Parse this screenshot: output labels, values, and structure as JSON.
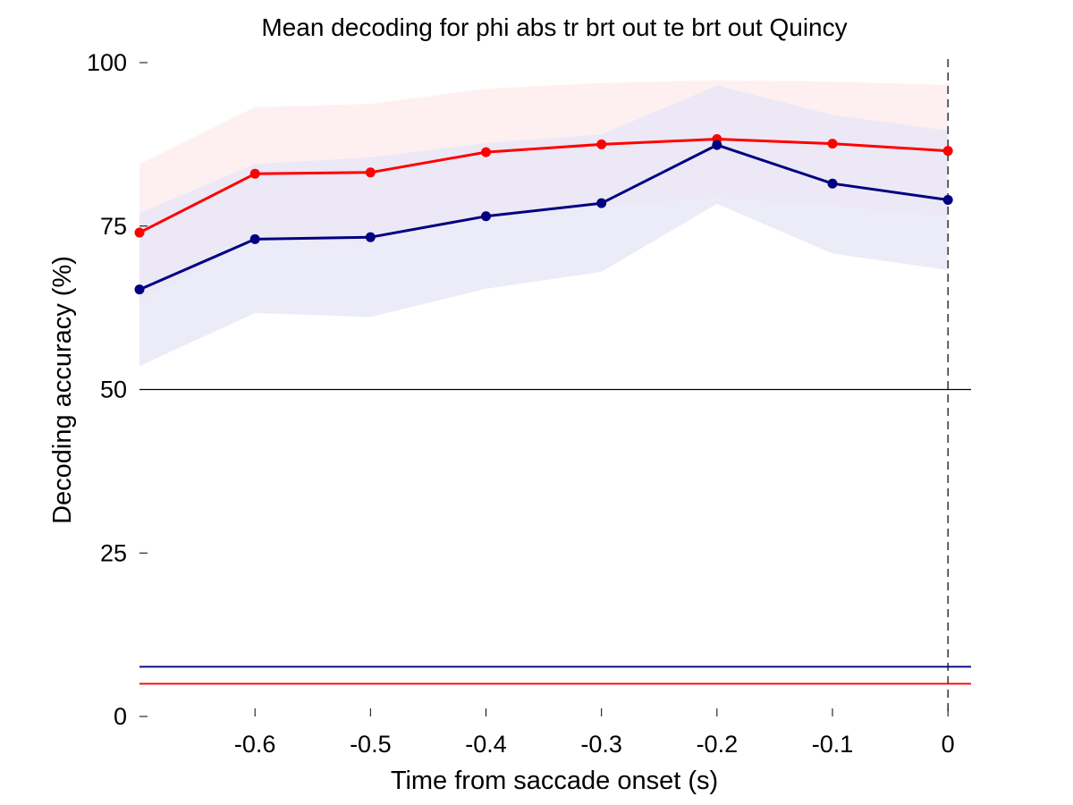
{
  "chart_data": {
    "type": "line",
    "title": "Mean decoding for phi abs tr brt out te brt out  Quincy",
    "xlabel": "Time from saccade onset (s)",
    "ylabel": "Decoding accuracy (%)",
    "xlim": [
      -0.7,
      0.02
    ],
    "ylim": [
      0,
      100
    ],
    "x_ticks": [
      -0.6,
      -0.5,
      -0.4,
      -0.3,
      -0.2,
      -0.1,
      0
    ],
    "x_tick_labels": [
      "-0.6",
      "-0.5",
      "-0.4",
      "-0.3",
      "-0.2",
      "-0.1",
      "0"
    ],
    "y_ticks": [
      0,
      25,
      50,
      75,
      100
    ],
    "y_tick_labels": [
      "0",
      "25",
      "50",
      "75",
      "100"
    ],
    "x": [
      -0.7,
      -0.6,
      -0.5,
      -0.4,
      -0.3,
      -0.2,
      -0.1,
      0
    ],
    "series": [
      {
        "color": "#ff0000",
        "band_color": "#fdebec",
        "values": [
          74,
          83,
          83.2,
          86.3,
          87.5,
          88.3,
          87.6,
          86.5
        ],
        "band_upper": [
          84.5,
          93.2,
          93.7,
          96,
          96.9,
          97.3,
          97.1,
          96.6
        ],
        "band_lower": [
          63.5,
          72.8,
          72.7,
          76.6,
          78.1,
          79.3,
          78.1,
          76.4
        ],
        "threshold": 5
      },
      {
        "color": "#000080",
        "band_color": "#e6e6f5",
        "values": [
          65.3,
          73,
          73.3,
          76.5,
          78.5,
          87.4,
          81.5,
          79
        ],
        "band_upper": [
          77,
          84.5,
          85.5,
          87.7,
          89,
          96.5,
          92,
          89.6
        ],
        "band_lower": [
          53.6,
          61.7,
          61.1,
          65.4,
          68,
          78.4,
          70.8,
          68.3
        ],
        "threshold": 7.6
      }
    ],
    "reference_lines": {
      "chance_y": 50,
      "event_x": 0
    },
    "grid": false,
    "legend": "none"
  }
}
